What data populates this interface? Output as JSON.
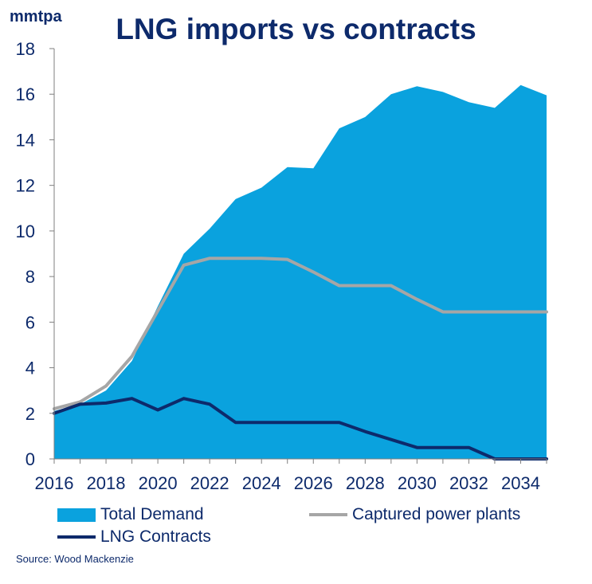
{
  "chart_data": {
    "type": "area",
    "title": "LNG imports vs contracts",
    "ylabel": "mmtpa",
    "ylim": [
      0,
      18
    ],
    "yticks": [
      0,
      2,
      4,
      6,
      8,
      10,
      12,
      14,
      16,
      18
    ],
    "xticks": [
      "2016",
      "2018",
      "2020",
      "2022",
      "2024",
      "2026",
      "2028",
      "2030",
      "2032",
      "2034"
    ],
    "x": [
      2016,
      2017,
      2018,
      2019,
      2020,
      2021,
      2022,
      2023,
      2024,
      2025,
      2026,
      2027,
      2028,
      2029,
      2030,
      2031,
      2032,
      2033,
      2034,
      2035
    ],
    "grid": false,
    "series": [
      {
        "name": "Total Demand",
        "kind": "area",
        "color": "#0aa2de",
        "values": [
          2.1,
          2.4,
          3.0,
          4.3,
          6.7,
          9.0,
          10.1,
          11.4,
          11.9,
          12.8,
          12.75,
          14.5,
          15.0,
          16.0,
          16.35,
          16.1,
          15.65,
          15.4,
          16.4,
          15.95
        ]
      },
      {
        "name": "Captured power plants",
        "kind": "line",
        "color": "#a6a6a6",
        "values": [
          2.2,
          2.5,
          3.2,
          4.5,
          6.5,
          8.5,
          8.8,
          8.8,
          8.8,
          8.75,
          8.2,
          7.6,
          7.6,
          7.6,
          7.0,
          6.45,
          6.45,
          6.45,
          6.45,
          6.45
        ]
      },
      {
        "name": "LNG Contracts",
        "kind": "line",
        "color": "#0d2a6b",
        "values": [
          2.0,
          2.4,
          2.45,
          2.65,
          2.15,
          2.65,
          2.4,
          1.6,
          1.6,
          1.6,
          1.6,
          1.6,
          1.2,
          0.85,
          0.5,
          0.5,
          0.5,
          0.0,
          0.0,
          0.0
        ]
      }
    ],
    "legend": "bottom",
    "source": "Source: Wood Mackenzie"
  }
}
